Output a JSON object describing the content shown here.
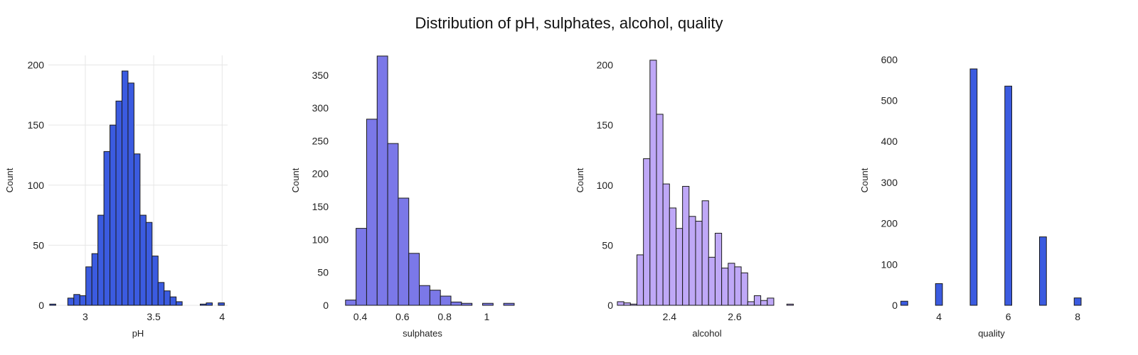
{
  "title": "Distribution of pH, sulphates, alcohol, quality",
  "chart_data": [
    {
      "type": "bar",
      "name": "pH",
      "xlabel": "pH",
      "ylabel": "Count",
      "color": "#3b5be0",
      "xlim": [
        2.73,
        4.04
      ],
      "ylim": [
        0,
        208
      ],
      "grid": true,
      "x_ticks": [
        3,
        3.5,
        4
      ],
      "x_tick_labels": [
        "3",
        "3.5",
        "4"
      ],
      "y_ticks": [
        0,
        50,
        100,
        150,
        200
      ],
      "bins": [
        {
          "x0": 2.74,
          "x1": 2.784,
          "count": 1
        },
        {
          "x0": 2.872,
          "x1": 2.916,
          "count": 6
        },
        {
          "x0": 2.916,
          "x1": 2.96,
          "count": 9
        },
        {
          "x0": 2.96,
          "x1": 3.004,
          "count": 8
        },
        {
          "x0": 3.004,
          "x1": 3.048,
          "count": 32
        },
        {
          "x0": 3.048,
          "x1": 3.092,
          "count": 43
        },
        {
          "x0": 3.092,
          "x1": 3.136,
          "count": 75
        },
        {
          "x0": 3.136,
          "x1": 3.18,
          "count": 128
        },
        {
          "x0": 3.18,
          "x1": 3.224,
          "count": 150
        },
        {
          "x0": 3.224,
          "x1": 3.268,
          "count": 170
        },
        {
          "x0": 3.268,
          "x1": 3.312,
          "count": 195
        },
        {
          "x0": 3.312,
          "x1": 3.356,
          "count": 185
        },
        {
          "x0": 3.356,
          "x1": 3.4,
          "count": 126
        },
        {
          "x0": 3.4,
          "x1": 3.444,
          "count": 75
        },
        {
          "x0": 3.444,
          "x1": 3.488,
          "count": 69
        },
        {
          "x0": 3.488,
          "x1": 3.532,
          "count": 41
        },
        {
          "x0": 3.532,
          "x1": 3.576,
          "count": 19
        },
        {
          "x0": 3.576,
          "x1": 3.62,
          "count": 12
        },
        {
          "x0": 3.62,
          "x1": 3.664,
          "count": 7
        },
        {
          "x0": 3.664,
          "x1": 3.708,
          "count": 3
        },
        {
          "x0": 3.84,
          "x1": 3.884,
          "count": 1
        },
        {
          "x0": 3.884,
          "x1": 3.928,
          "count": 2
        },
        {
          "x0": 3.972,
          "x1": 4.016,
          "count": 2
        }
      ]
    },
    {
      "type": "bar",
      "name": "sulphates",
      "xlabel": "sulphates",
      "ylabel": "Count",
      "color": "#7b78e8",
      "xlim": [
        0.27,
        1.12
      ],
      "ylim": [
        0,
        380
      ],
      "grid": false,
      "x_ticks": [
        0.4,
        0.6,
        0.8,
        1
      ],
      "x_tick_labels": [
        "0.4",
        "0.6",
        "0.8",
        "1"
      ],
      "y_ticks": [
        0,
        50,
        100,
        150,
        200,
        250,
        300,
        350
      ],
      "bins": [
        {
          "x0": 0.33,
          "x1": 0.38,
          "count": 8
        },
        {
          "x0": 0.38,
          "x1": 0.43,
          "count": 117
        },
        {
          "x0": 0.43,
          "x1": 0.48,
          "count": 283
        },
        {
          "x0": 0.48,
          "x1": 0.53,
          "count": 379
        },
        {
          "x0": 0.53,
          "x1": 0.58,
          "count": 246
        },
        {
          "x0": 0.58,
          "x1": 0.63,
          "count": 163
        },
        {
          "x0": 0.63,
          "x1": 0.68,
          "count": 79
        },
        {
          "x0": 0.68,
          "x1": 0.73,
          "count": 30
        },
        {
          "x0": 0.73,
          "x1": 0.78,
          "count": 23
        },
        {
          "x0": 0.78,
          "x1": 0.83,
          "count": 14
        },
        {
          "x0": 0.83,
          "x1": 0.88,
          "count": 5
        },
        {
          "x0": 0.88,
          "x1": 0.93,
          "count": 3
        },
        {
          "x0": 0.98,
          "x1": 1.03,
          "count": 3
        },
        {
          "x0": 1.08,
          "x1": 1.13,
          "count": 3
        }
      ]
    },
    {
      "type": "bar",
      "name": "alcohol",
      "xlabel": "alcohol",
      "ylabel": "Count",
      "color": "#bfa8f7",
      "xlim": [
        2.24,
        2.79
      ],
      "ylim": [
        0,
        208
      ],
      "grid": false,
      "x_ticks": [
        2.4,
        2.6
      ],
      "x_tick_labels": [
        "2.4",
        "2.6"
      ],
      "y_ticks": [
        0,
        50,
        100,
        150,
        200
      ],
      "bins": [
        {
          "x0": 2.24,
          "x1": 2.26,
          "count": 3
        },
        {
          "x0": 2.26,
          "x1": 2.28,
          "count": 2
        },
        {
          "x0": 2.28,
          "x1": 2.3,
          "count": 1
        },
        {
          "x0": 2.3,
          "x1": 2.32,
          "count": 42
        },
        {
          "x0": 2.32,
          "x1": 2.34,
          "count": 122
        },
        {
          "x0": 2.34,
          "x1": 2.36,
          "count": 204
        },
        {
          "x0": 2.36,
          "x1": 2.38,
          "count": 159
        },
        {
          "x0": 2.38,
          "x1": 2.4,
          "count": 101
        },
        {
          "x0": 2.4,
          "x1": 2.42,
          "count": 81
        },
        {
          "x0": 2.42,
          "x1": 2.44,
          "count": 64
        },
        {
          "x0": 2.44,
          "x1": 2.46,
          "count": 99
        },
        {
          "x0": 2.46,
          "x1": 2.48,
          "count": 74
        },
        {
          "x0": 2.48,
          "x1": 2.5,
          "count": 70
        },
        {
          "x0": 2.5,
          "x1": 2.52,
          "count": 87
        },
        {
          "x0": 2.52,
          "x1": 2.54,
          "count": 40
        },
        {
          "x0": 2.54,
          "x1": 2.56,
          "count": 60
        },
        {
          "x0": 2.56,
          "x1": 2.58,
          "count": 31
        },
        {
          "x0": 2.58,
          "x1": 2.6,
          "count": 35
        },
        {
          "x0": 2.6,
          "x1": 2.62,
          "count": 32
        },
        {
          "x0": 2.62,
          "x1": 2.64,
          "count": 27
        },
        {
          "x0": 2.64,
          "x1": 2.66,
          "count": 3
        },
        {
          "x0": 2.66,
          "x1": 2.68,
          "count": 8
        },
        {
          "x0": 2.68,
          "x1": 2.7,
          "count": 4
        },
        {
          "x0": 2.7,
          "x1": 2.72,
          "count": 6
        },
        {
          "x0": 2.76,
          "x1": 2.78,
          "count": 1
        }
      ]
    },
    {
      "type": "bar",
      "name": "quality",
      "xlabel": "quality",
      "ylabel": "Count",
      "color": "#3b5be0",
      "xlim": [
        2.93,
        8.1
      ],
      "ylim": [
        0,
        610
      ],
      "grid": false,
      "x_ticks": [
        4,
        6,
        8
      ],
      "x_tick_labels": [
        "4",
        "6",
        "8"
      ],
      "y_ticks": [
        0,
        100,
        200,
        300,
        400,
        500,
        600
      ],
      "bins": [
        {
          "x0": 2.9,
          "x1": 3.1,
          "count": 10
        },
        {
          "x0": 3.9,
          "x1": 4.1,
          "count": 53
        },
        {
          "x0": 4.9,
          "x1": 5.1,
          "count": 577
        },
        {
          "x0": 5.9,
          "x1": 6.1,
          "count": 535
        },
        {
          "x0": 6.9,
          "x1": 7.1,
          "count": 167
        },
        {
          "x0": 7.9,
          "x1": 8.1,
          "count": 18
        }
      ]
    }
  ]
}
